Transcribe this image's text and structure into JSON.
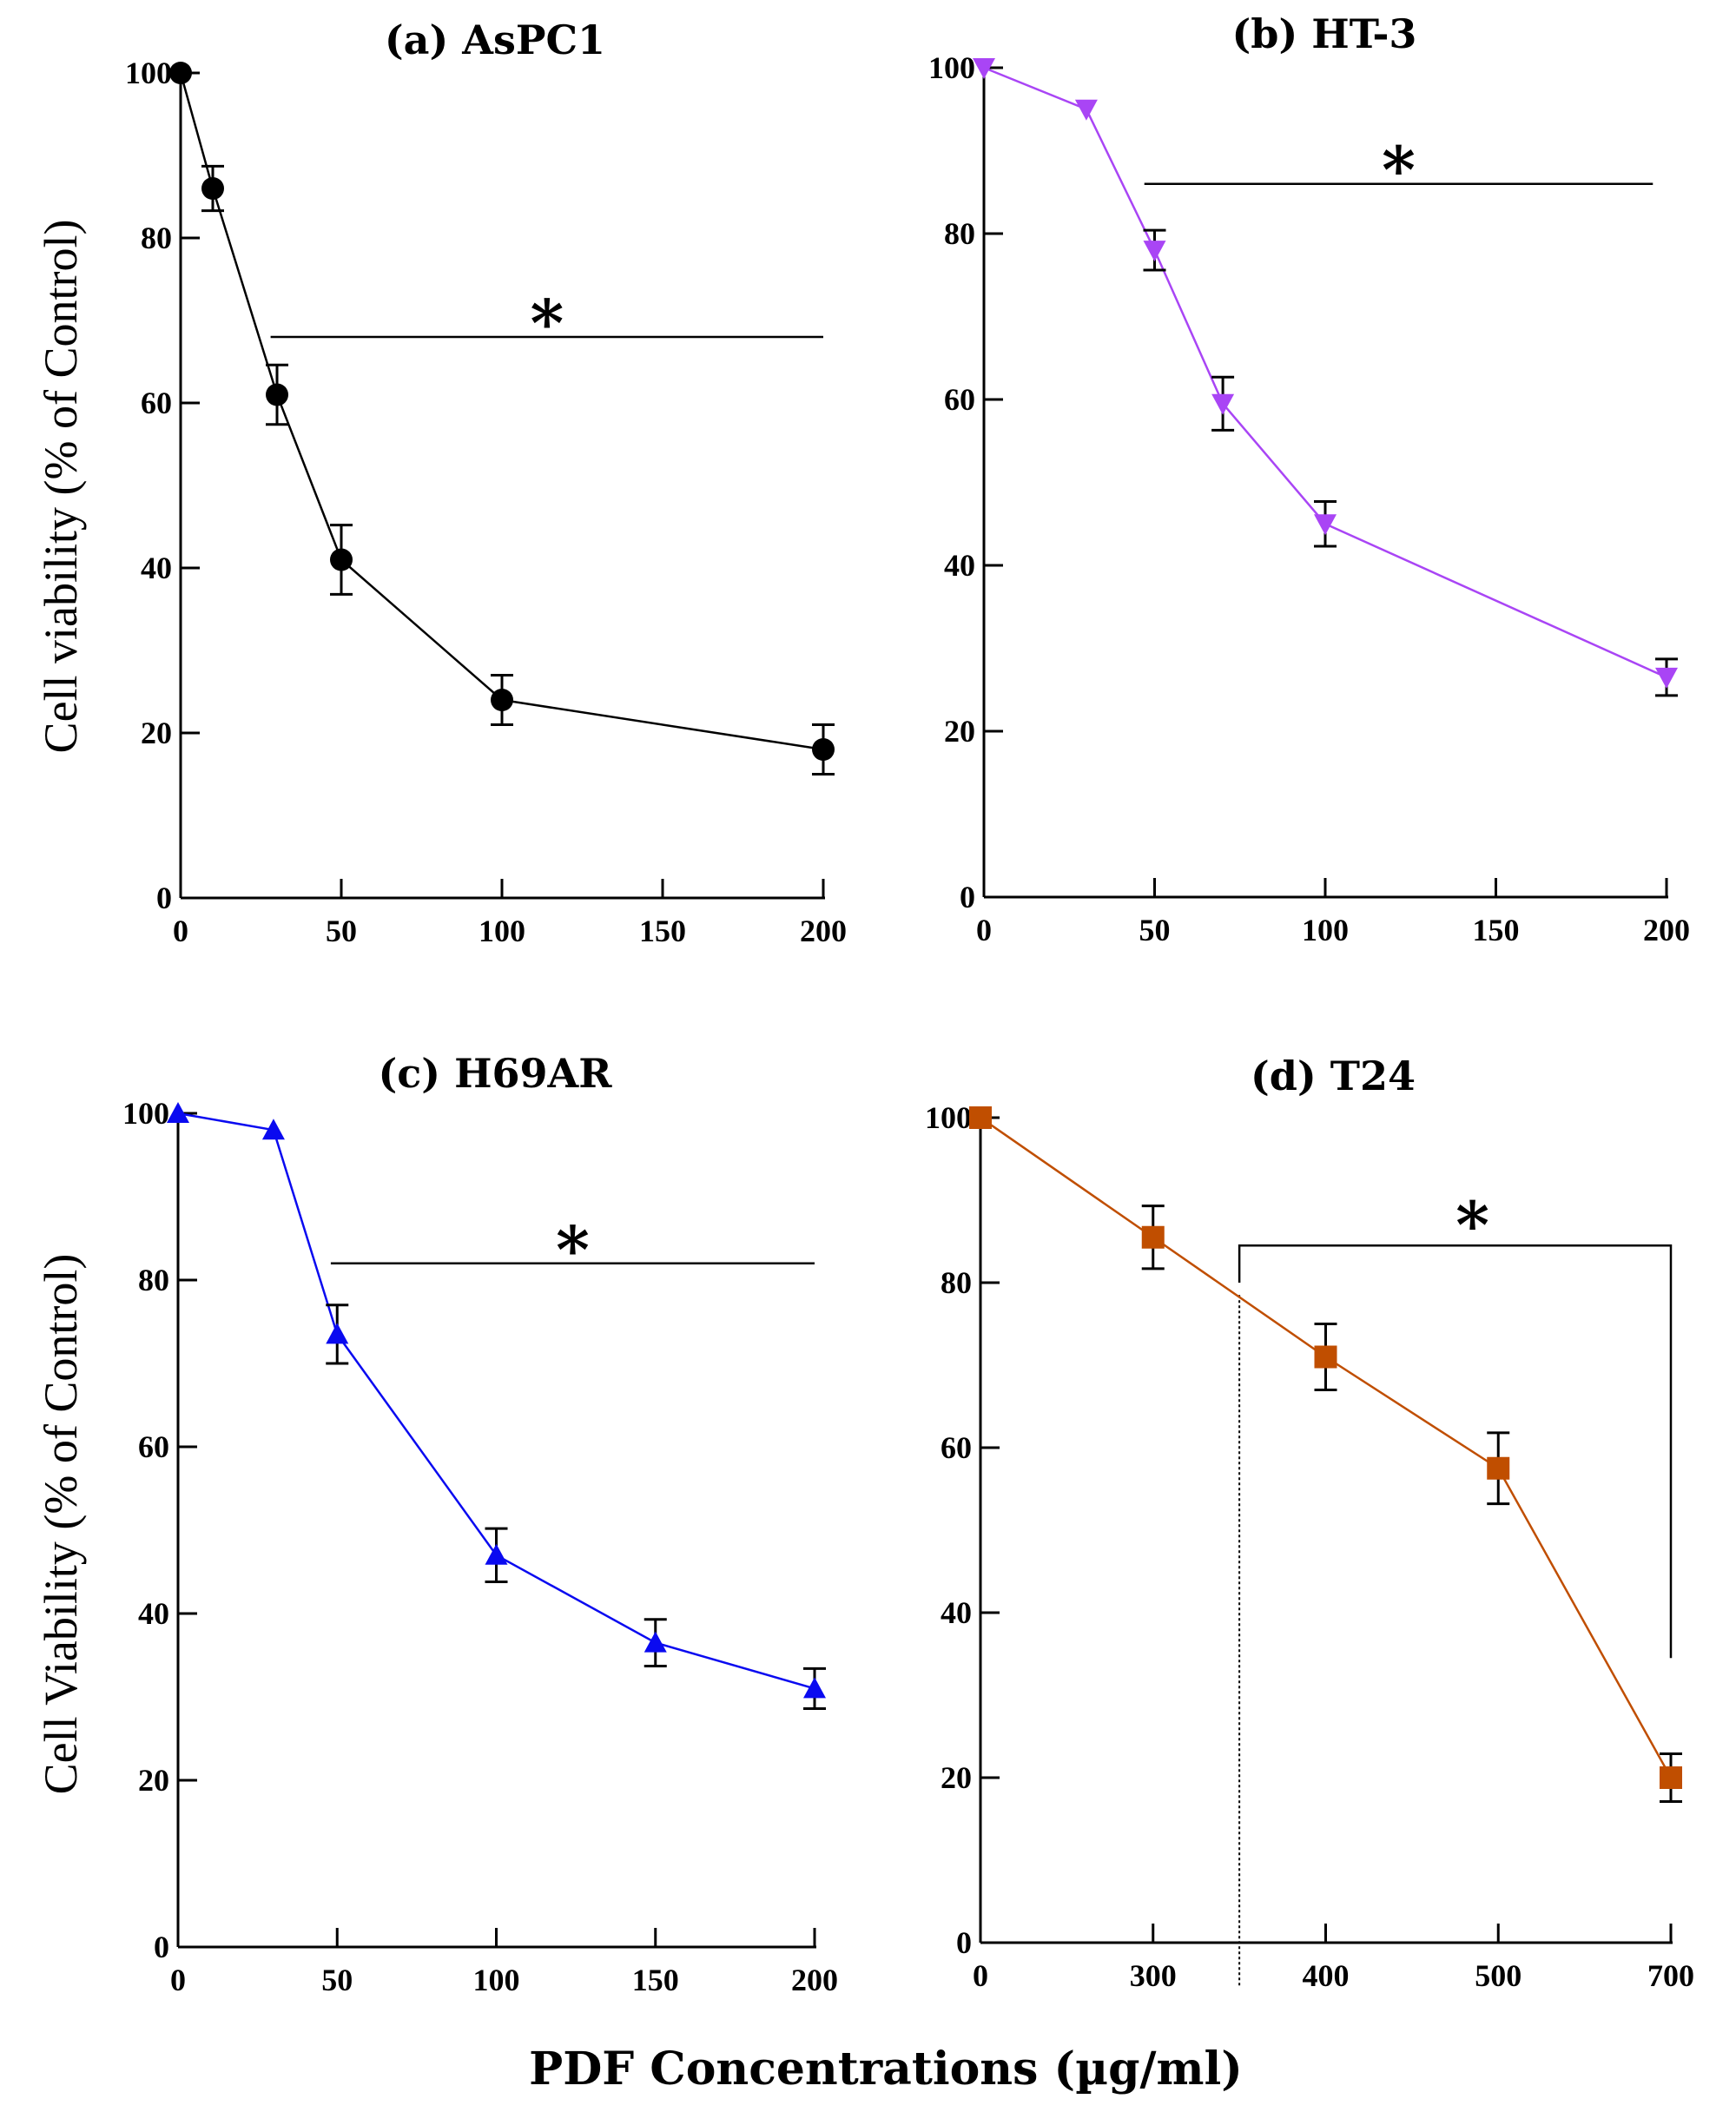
{
  "figure": {
    "common_xlabel": "PDF Concentrations (µg/ml)"
  },
  "chart_data": [
    {
      "id": "a",
      "type": "line",
      "title": "(a) AsPC1",
      "xlabel": "",
      "ylabel": "Cell viability (% of Control)",
      "x_scale": "linear",
      "xlim": [
        0,
        200
      ],
      "ylim": [
        0,
        100
      ],
      "xticks": [
        0,
        50,
        100,
        150,
        200
      ],
      "yticks": [
        0,
        20,
        40,
        60,
        80,
        100
      ],
      "grid": false,
      "series": [
        {
          "name": "AsPC1",
          "color": "#000000",
          "marker": "circle",
          "x": [
            0,
            10,
            30,
            50,
            100,
            200
          ],
          "values": [
            100,
            86,
            61,
            41,
            24,
            18
          ],
          "error": [
            0,
            2.7,
            3.6,
            4.2,
            3,
            3
          ]
        }
      ],
      "significance": {
        "label": "*",
        "type": "line",
        "x_from": 28,
        "x_to": 200,
        "y": 68
      }
    },
    {
      "id": "b",
      "type": "line",
      "title": "(b) HT-3",
      "xlabel": "",
      "ylabel": "",
      "x_scale": "linear",
      "xlim": [
        0,
        200
      ],
      "ylim": [
        0,
        100
      ],
      "xticks": [
        0,
        50,
        100,
        150,
        200
      ],
      "yticks": [
        0,
        20,
        40,
        60,
        80,
        100
      ],
      "grid": false,
      "series": [
        {
          "name": "HT-3",
          "color": "#A945F5",
          "marker": "triangle-down",
          "x": [
            0,
            30,
            50,
            70,
            100,
            200
          ],
          "values": [
            100,
            95,
            78,
            59.5,
            45,
            26.5
          ],
          "error": [
            0,
            0,
            2.4,
            3.2,
            2.7,
            2.2
          ]
        }
      ],
      "significance": {
        "label": "*",
        "type": "line",
        "x_from": 47,
        "x_to": 196,
        "y": 86
      }
    },
    {
      "id": "c",
      "type": "line",
      "title": "(c) H69AR",
      "xlabel": "",
      "ylabel": "Cell Viability (% of Control)",
      "x_scale": "linear",
      "xlim": [
        0,
        200
      ],
      "ylim": [
        0,
        100
      ],
      "xticks": [
        0,
        50,
        100,
        150,
        200
      ],
      "yticks": [
        0,
        20,
        40,
        60,
        80,
        100
      ],
      "grid": false,
      "series": [
        {
          "name": "H69AR",
          "color": "#0A0AF0",
          "marker": "triangle-up",
          "x": [
            0,
            30,
            50,
            100,
            150,
            200
          ],
          "values": [
            100,
            98,
            73.5,
            47,
            36.5,
            31
          ],
          "error": [
            0,
            0,
            3.5,
            3.2,
            2.8,
            2.4
          ]
        }
      ],
      "significance": {
        "label": "*",
        "type": "line",
        "x_from": 48,
        "x_to": 200,
        "y": 82
      }
    },
    {
      "id": "d",
      "type": "line",
      "title": "(d) T24",
      "xlabel": "",
      "ylabel": "",
      "x_scale": "categorical",
      "categories": [
        "0",
        "300",
        "400",
        "500",
        "700"
      ],
      "ylim": [
        0,
        100
      ],
      "yticks": [
        0,
        20,
        40,
        60,
        80,
        100
      ],
      "grid": false,
      "series": [
        {
          "name": "T24",
          "color": "#C04E00",
          "marker": "square",
          "x": [
            "0",
            "300",
            "400",
            "500",
            "700"
          ],
          "values": [
            100,
            85.5,
            71,
            57.5,
            20
          ],
          "error": [
            0,
            3.8,
            4,
            4.3,
            2.9
          ]
        }
      ],
      "significance": {
        "label": "*",
        "type": "bracket",
        "x_from_index": 1.5,
        "x_to_index": 4,
        "y": 84.5,
        "left_end_y": 80,
        "right_end_y": 34.5
      },
      "dotted_divider_index": 1.5
    }
  ]
}
